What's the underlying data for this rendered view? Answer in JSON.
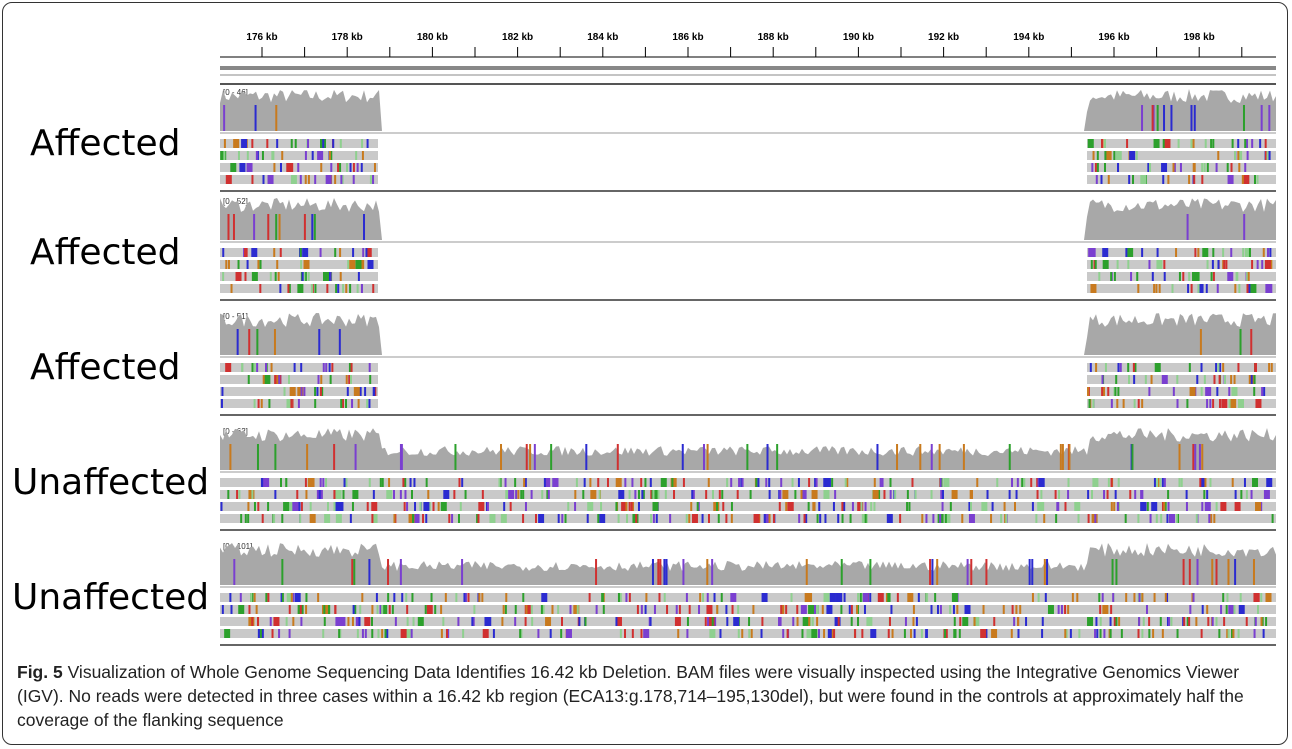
{
  "figure": {
    "ruler": [
      "176 kb",
      "178 kb",
      "180 kb",
      "182 kb",
      "184 kb",
      "186 kb",
      "188 kb",
      "190 kb",
      "192 kb",
      "194 kb",
      "196 kb",
      "198 kb"
    ],
    "tracks": [
      {
        "label": "Affected",
        "range": "[0 - 46]"
      },
      {
        "label": "Affected",
        "range": "[0 - 52]"
      },
      {
        "label": "Affected",
        "range": "[0 - 51]"
      },
      {
        "label": "Unaffected",
        "range": "[0 - 62]"
      },
      {
        "label": "Unaffected",
        "range": "[0 - 101]"
      }
    ],
    "caption": {
      "label": "Fig. 5",
      "text": "Visualization of Whole Genome Sequencing Data Identifies 16.42 kb Deletion. BAM files were visually inspected using the Integrative Genomics Viewer (IGV). No reads were detected in three cases within a 16.42 kb region (ECA13:g.178,714–195,130del), but were found in the controls at approximately half the coverage of the flanking sequence"
    }
  }
}
